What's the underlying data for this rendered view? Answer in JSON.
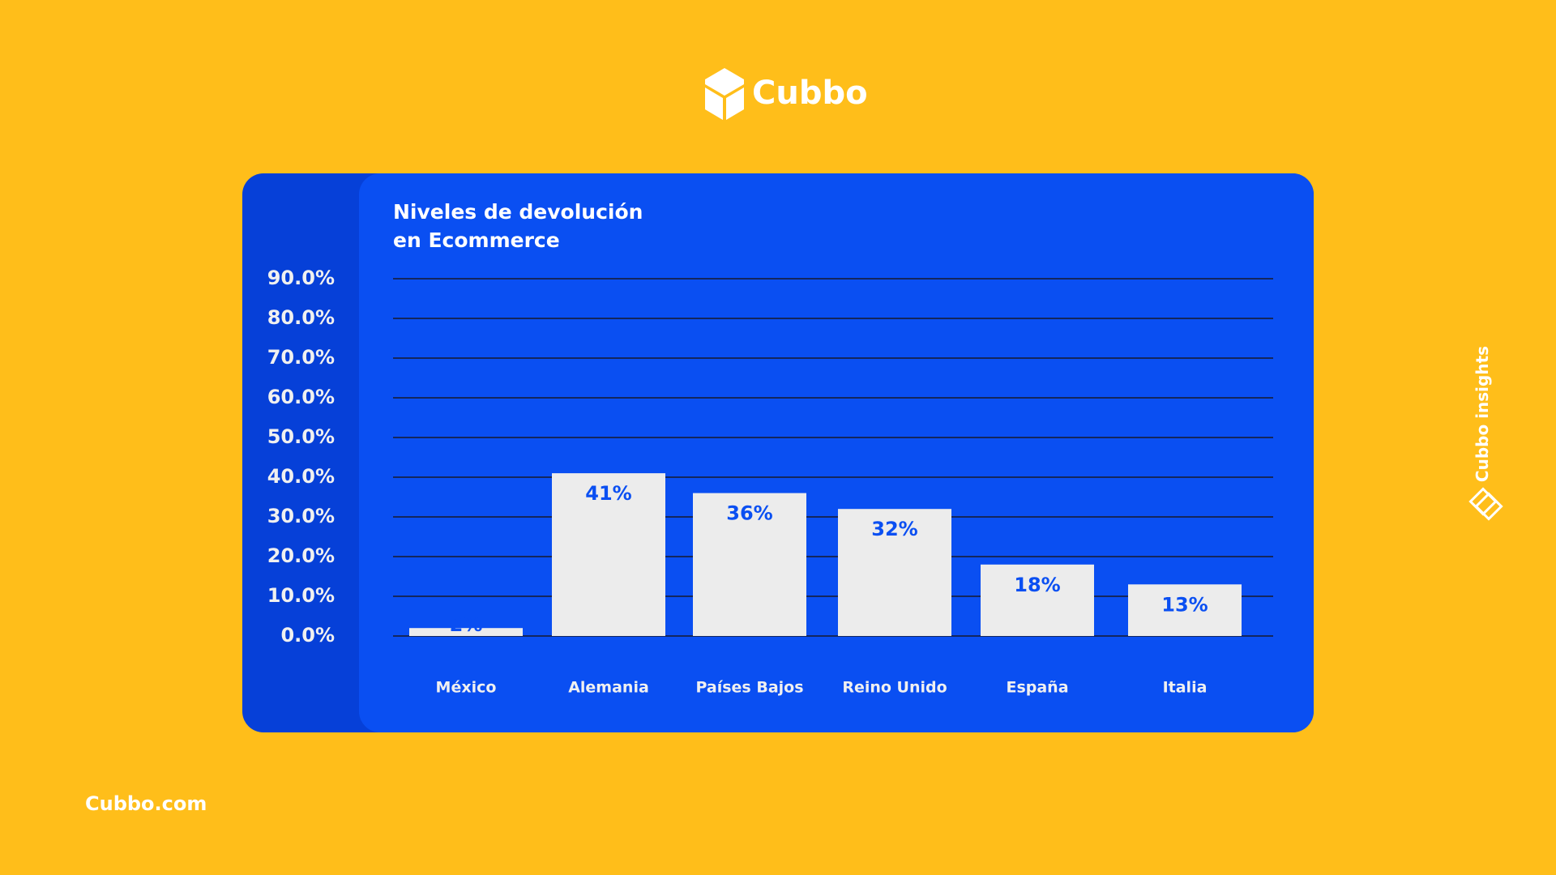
{
  "brand": "Cubbo",
  "footer": "Cubbo.com",
  "side_label": "Cubbo insights",
  "chart_data": {
    "type": "bar",
    "title": "Niveles de devolución en Ecommerce",
    "categories": [
      "México",
      "Alemania",
      "Países Bajos",
      "Reino Unido",
      "España",
      "Italia"
    ],
    "values": [
      2,
      41,
      36,
      32,
      18,
      13
    ],
    "value_labels": [
      "2%",
      "41%",
      "36%",
      "32%",
      "18%",
      "13%"
    ],
    "color": "#ececec",
    "ylim": [
      0,
      90
    ],
    "yticks": [
      {
        "value": 0,
        "label": "0.0%"
      },
      {
        "value": 10,
        "label": "10.0%"
      },
      {
        "value": 20,
        "label": "20.0%"
      },
      {
        "value": 30,
        "label": "30.0%"
      },
      {
        "value": 40,
        "label": "40.0%"
      },
      {
        "value": 50,
        "label": "50.0%"
      },
      {
        "value": 60,
        "label": "60.0%"
      },
      {
        "value": 70,
        "label": "70.0%"
      },
      {
        "value": 80,
        "label": "80.0%"
      },
      {
        "value": 90,
        "label": "90.0%"
      }
    ],
    "grid": true
  }
}
